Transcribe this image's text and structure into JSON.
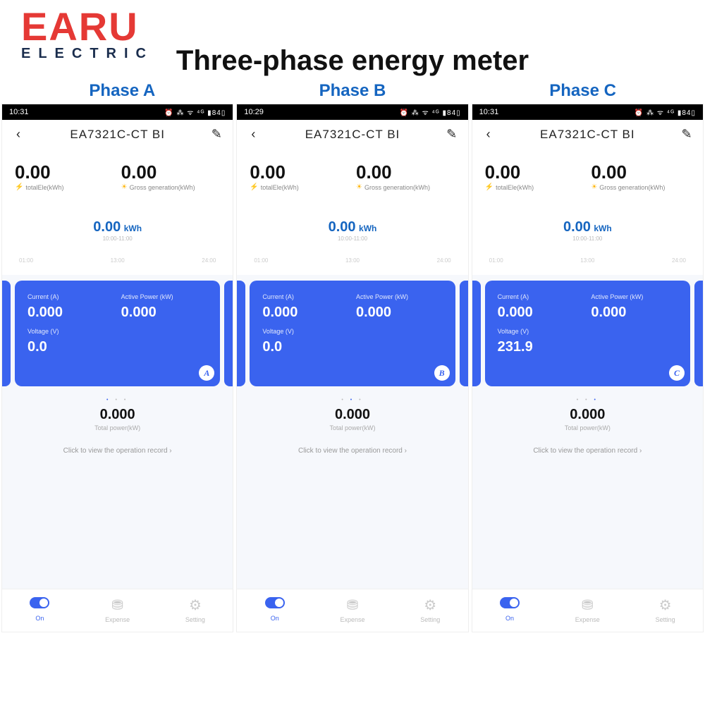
{
  "logo": {
    "main": "EARU",
    "sub": "ELECTRIC"
  },
  "headline": "Three-phase energy meter",
  "colors": {
    "brand_red": "#e53935",
    "brand_navy": "#1a2d4d",
    "accent_blue": "#1565c0",
    "card_blue": "#3a63ef",
    "muted": "#aaaaaa",
    "bg_light": "#f6f8fc"
  },
  "phase_labels": [
    "Phase A",
    "Phase B",
    "Phase C"
  ],
  "screens": [
    {
      "status_time": "10:31",
      "status_icons": "⏰ ⁂ ᯤ ⁴ᴳ ▮84▯",
      "title": "EA7321C-CT BI",
      "total_ele": {
        "value": "0.00",
        "label": "totalEle(kWh)"
      },
      "gross_gen": {
        "value": "0.00",
        "label": "Gross generation(kWh)"
      },
      "chart": {
        "value": "0.00",
        "unit": "kWh",
        "sub": "10:00-11:00",
        "axis": [
          "01:00",
          "13:00",
          "24:00"
        ]
      },
      "card": {
        "current_label": "Current (A)",
        "current": "0.000",
        "power_label": "Active Power (kW)",
        "power": "0.000",
        "voltage_label": "Voltage (V)",
        "voltage": "0.0",
        "badge": "A"
      },
      "dot_index": 0,
      "total_power": {
        "value": "0.000",
        "label": "Total power(kW)"
      },
      "record_link": "Click to view the operation record ›",
      "nav": {
        "on": "On",
        "expense": "Expense",
        "setting": "Setting"
      }
    },
    {
      "status_time": "10:29",
      "status_icons": "⏰ ⁂ ᯤ ⁴ᴳ ▮84▯",
      "title": "EA7321C-CT BI",
      "total_ele": {
        "value": "0.00",
        "label": "totalEle(kWh)"
      },
      "gross_gen": {
        "value": "0.00",
        "label": "Gross generation(kWh)"
      },
      "chart": {
        "value": "0.00",
        "unit": "kWh",
        "sub": "10:00-11:00",
        "axis": [
          "01:00",
          "13:00",
          "24:00"
        ]
      },
      "card": {
        "current_label": "Current (A)",
        "current": "0.000",
        "power_label": "Active Power (kW)",
        "power": "0.000",
        "voltage_label": "Voltage (V)",
        "voltage": "0.0",
        "badge": "B"
      },
      "dot_index": 1,
      "total_power": {
        "value": "0.000",
        "label": "Total power(kW)"
      },
      "record_link": "Click to view the operation record ›",
      "nav": {
        "on": "On",
        "expense": "Expense",
        "setting": "Setting"
      }
    },
    {
      "status_time": "10:31",
      "status_icons": "⏰ ⁂ ᯤ ⁴ᴳ ▮84▯",
      "title": "EA7321C-CT BI",
      "total_ele": {
        "value": "0.00",
        "label": "totalEle(kWh)"
      },
      "gross_gen": {
        "value": "0.00",
        "label": "Gross generation(kWh)"
      },
      "chart": {
        "value": "0.00",
        "unit": "kWh",
        "sub": "10:00-11:00",
        "axis": [
          "01:00",
          "13:00",
          "24:00"
        ]
      },
      "card": {
        "current_label": "Current (A)",
        "current": "0.000",
        "power_label": "Active Power (kW)",
        "power": "0.000",
        "voltage_label": "Voltage (V)",
        "voltage": "231.9",
        "badge": "C"
      },
      "dot_index": 2,
      "total_power": {
        "value": "0.000",
        "label": "Total power(kW)"
      },
      "record_link": "Click to view the operation record ›",
      "nav": {
        "on": "On",
        "expense": "Expense",
        "setting": "Setting"
      }
    }
  ]
}
